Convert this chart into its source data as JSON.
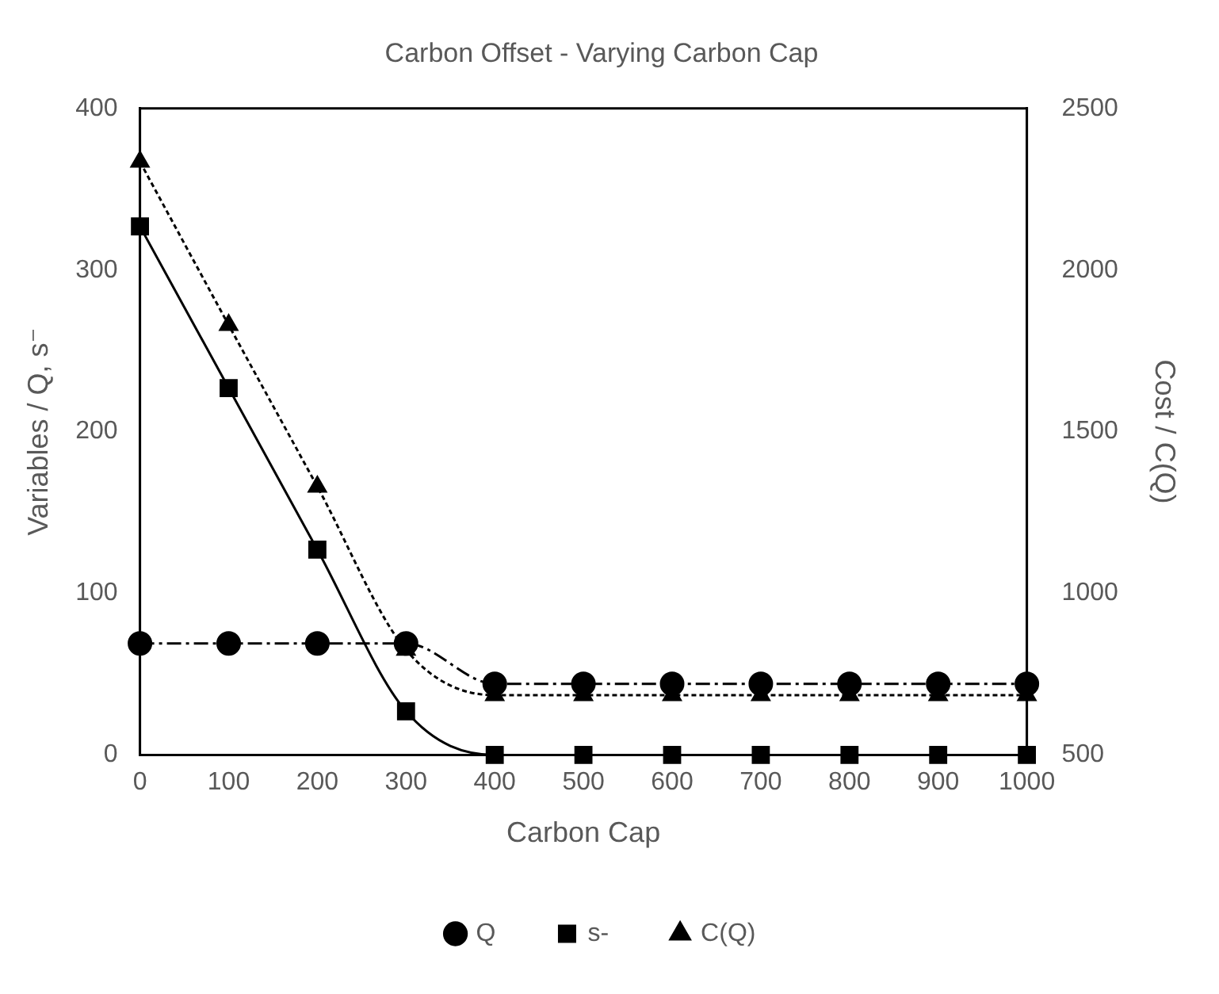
{
  "chart_data": {
    "type": "line",
    "title": "Carbon Offset - Varying Carbon Cap",
    "xlabel": "Carbon Cap",
    "ylabel": "Variables / Q, s⁻",
    "y2label": "Cost / C(Q)",
    "x": [
      0,
      100,
      200,
      300,
      400,
      500,
      600,
      700,
      800,
      900,
      1000
    ],
    "series": [
      {
        "name": "Q",
        "color": "#000000",
        "marker": "circle",
        "line_style": "dashed",
        "values": [
          69,
          69,
          69,
          69,
          44,
          44,
          44,
          44,
          44,
          44,
          44
        ]
      },
      {
        "name": "s-",
        "color": "#000000",
        "marker": "square",
        "line_style": "solid",
        "values": [
          327,
          227,
          127,
          27,
          0,
          0,
          0,
          0,
          0,
          0,
          0
        ]
      },
      {
        "name": "C(Q)",
        "color": "#000000",
        "marker": "triangle",
        "line_style": "dotted",
        "axis": "y2",
        "values": [
          2335,
          1830,
          1330,
          825,
          685,
          685,
          685,
          685,
          685,
          685,
          685
        ]
      }
    ],
    "xlim": [
      0,
      1000
    ],
    "xticks": [
      0,
      100,
      200,
      300,
      400,
      500,
      600,
      700,
      800,
      900,
      1000
    ],
    "ylim": [
      0,
      400
    ],
    "yticks": [
      0,
      100,
      200,
      300,
      400
    ],
    "y2lim": [
      500,
      2500
    ],
    "y2ticks": [
      500,
      1000,
      1500,
      2000,
      2500
    ],
    "grid": false,
    "legend": "bottom"
  }
}
